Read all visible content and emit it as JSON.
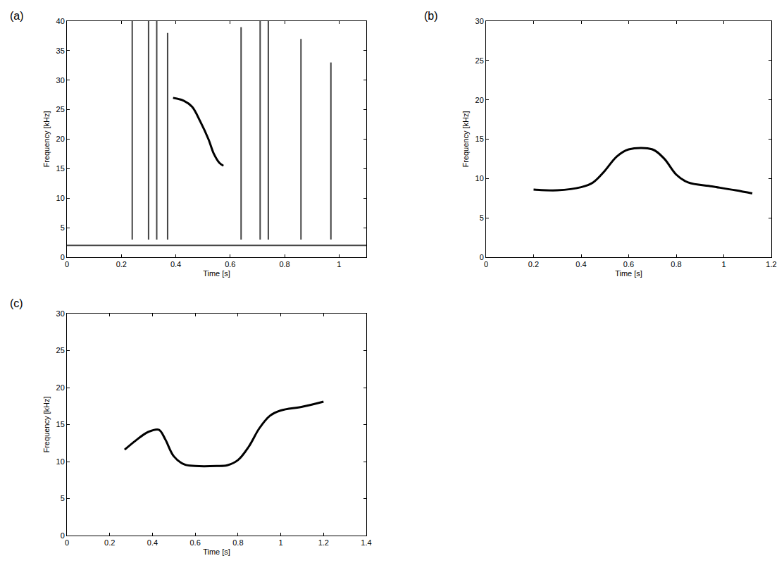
{
  "chart_data": [
    {
      "type": "line",
      "title": "(a)",
      "x_label": "Time [s]",
      "y_label": "Frequency [kHz]",
      "xlim": [
        0,
        1.1
      ],
      "xticks": [
        0,
        0.2,
        0.4,
        0.6,
        0.8,
        1
      ],
      "ylim": [
        0,
        40
      ],
      "yticks": [
        0,
        5,
        10,
        15,
        20,
        25,
        30,
        35,
        40
      ],
      "grid": false,
      "series": [
        {
          "type": "line",
          "color": "#000000",
          "line_style": "solid",
          "x": [
            0.39,
            0.43,
            0.46,
            0.49,
            0.52,
            0.54,
            0.56,
            0.575
          ],
          "values": [
            27,
            26.5,
            25.5,
            23,
            20,
            17.5,
            16,
            15.5
          ]
        },
        {
          "type": "line",
          "color": "#444444",
          "line_style": "solid",
          "x": [
            0.24,
            0.24,
            null,
            0.3,
            0.3,
            null,
            0.33,
            0.33,
            null,
            0.37,
            0.37,
            null,
            0.64,
            0.64,
            null,
            0.71,
            0.71,
            null,
            0.74,
            0.74,
            null,
            0.86,
            0.86,
            null,
            0.97,
            0.97
          ],
          "values": [
            3,
            40,
            null,
            3,
            40,
            null,
            3,
            40,
            null,
            3,
            38,
            null,
            3,
            39,
            null,
            3,
            40,
            null,
            3,
            40,
            null,
            3,
            37,
            null,
            3,
            33
          ]
        },
        {
          "type": "line",
          "color": "#444444",
          "line_style": "solid",
          "x": [
            0,
            1.1
          ],
          "values": [
            2,
            2
          ]
        }
      ]
    },
    {
      "type": "line",
      "title": "(b)",
      "x_label": "Time [s]",
      "y_label": "Frequency [kHz]",
      "xlim": [
        0,
        1.2
      ],
      "xticks": [
        0,
        0.2,
        0.4,
        0.6,
        0.8,
        1,
        1.2
      ],
      "ylim": [
        0,
        30
      ],
      "yticks": [
        0,
        5,
        10,
        15,
        20,
        25,
        30
      ],
      "grid": false,
      "series": [
        {
          "type": "line",
          "color": "#000000",
          "line_style": "solid",
          "x": [
            0.2,
            0.3,
            0.4,
            0.45,
            0.5,
            0.55,
            0.6,
            0.7,
            0.75,
            0.8,
            0.85,
            0.95,
            1.05,
            1.12
          ],
          "values": [
            8.6,
            8.5,
            8.9,
            9.5,
            11,
            12.8,
            13.7,
            13.7,
            12.5,
            10.5,
            9.5,
            9,
            8.5,
            8.1
          ]
        }
      ]
    },
    {
      "type": "line",
      "title": "(c)",
      "x_label": "Time [s]",
      "y_label": "Frequency [kHz]",
      "xlim": [
        0,
        1.4
      ],
      "xticks": [
        0,
        0.2,
        0.4,
        0.6,
        0.8,
        1,
        1.2,
        1.4
      ],
      "ylim": [
        0,
        30
      ],
      "yticks": [
        0,
        5,
        10,
        15,
        20,
        25,
        30
      ],
      "grid": false,
      "series": [
        {
          "type": "line",
          "color": "#000000",
          "line_style": "solid",
          "x": [
            0.27,
            0.32,
            0.38,
            0.43,
            0.46,
            0.5,
            0.55,
            0.6,
            0.7,
            0.75,
            0.8,
            0.85,
            0.9,
            0.95,
            1.0,
            1.1,
            1.2
          ],
          "values": [
            11.6,
            12.8,
            14,
            14.3,
            13,
            10.7,
            9.6,
            9.4,
            9.4,
            9.5,
            10.2,
            12,
            14.5,
            16.2,
            16.9,
            17.4,
            18.1
          ]
        }
      ]
    }
  ]
}
